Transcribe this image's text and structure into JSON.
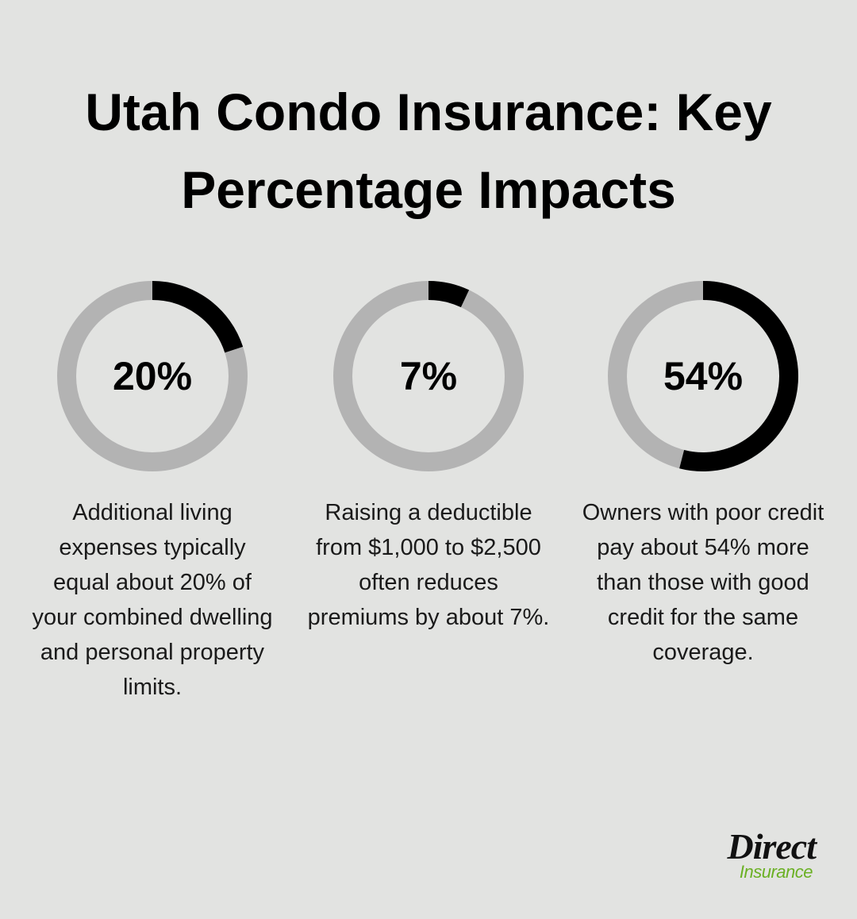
{
  "title": "Utah Condo Insurance: Key Percentage Impacts",
  "chart_data": [
    {
      "type": "donut",
      "values": [
        20
      ],
      "value_labels": [
        "20%"
      ],
      "color": "#000000",
      "track_color": "#b3b3b3",
      "caption": "Additional living expenses typically equal about 20% of your combined dwelling and personal property limits."
    },
    {
      "type": "donut",
      "values": [
        7
      ],
      "value_labels": [
        "7%"
      ],
      "color": "#000000",
      "track_color": "#b3b3b3",
      "caption": "Raising a deductible from $1,000 to $2,500 often reduces premiums by about 7%."
    },
    {
      "type": "donut",
      "values": [
        54
      ],
      "value_labels": [
        "54%"
      ],
      "color": "#000000",
      "track_color": "#b3b3b3",
      "caption": "Owners with poor credit pay about 54% more than those with good credit for the same coverage."
    }
  ],
  "logo": {
    "name": "Direct",
    "tagline": "Insurance"
  }
}
